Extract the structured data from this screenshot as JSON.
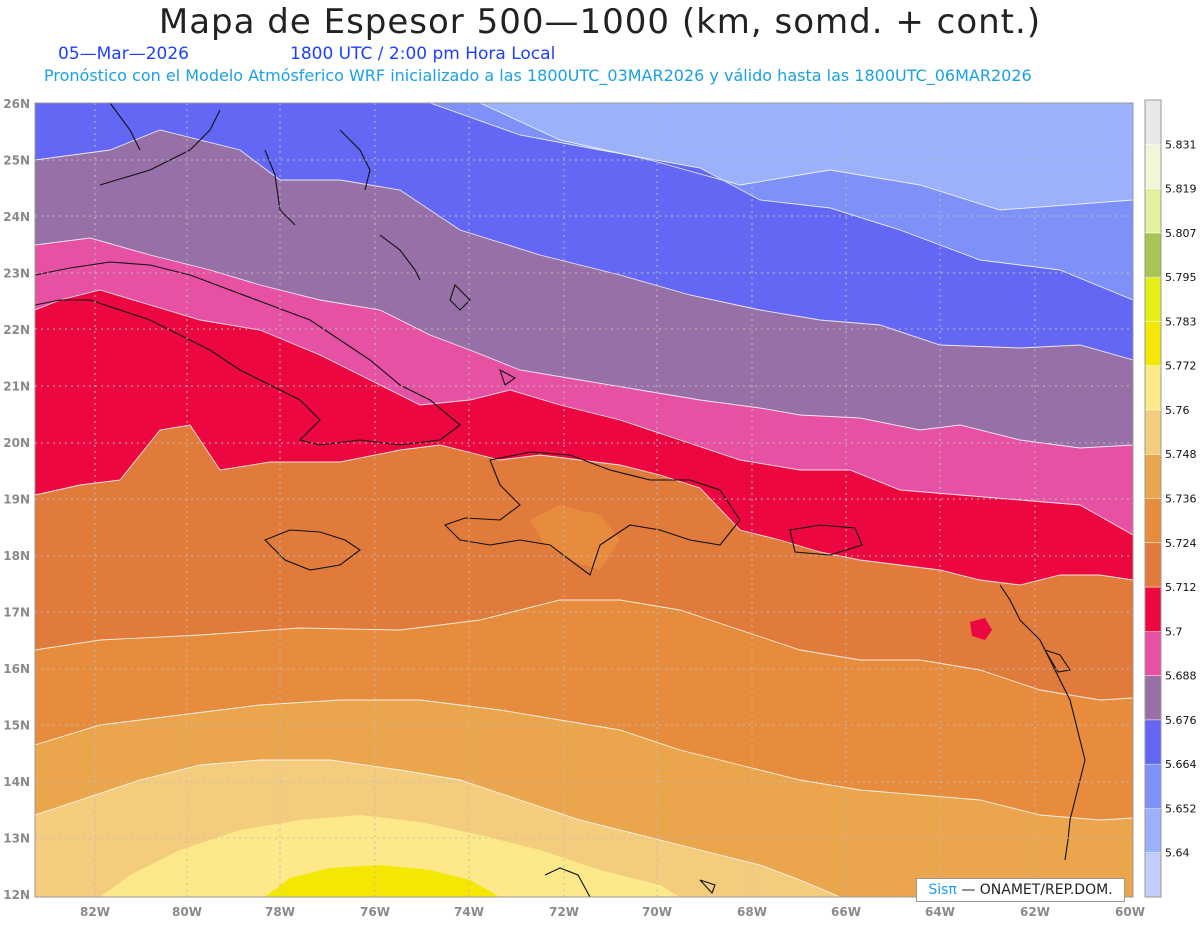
{
  "header": {
    "title": "Mapa de Espesor 500—1000 (km, somd. + cont.)",
    "date": "05—Mar—2026",
    "time": "1800 UTC / 2:00 pm Hora Local",
    "subtitle": "Pronóstico con el Modelo Atmósferico WRF inicializado a las 1800UTC_03MAR2026 y válido hasta las  1800UTC_06MAR2026"
  },
  "axes": {
    "lon_labels": [
      "82W",
      "80W",
      "78W",
      "76W",
      "74W",
      "72W",
      "70W",
      "68W",
      "66W",
      "64W",
      "62W",
      "60W"
    ],
    "lat_labels": [
      "12N",
      "13N",
      "14N",
      "15N",
      "16N",
      "17N",
      "18N",
      "19N",
      "20N",
      "21N",
      "22N",
      "23N",
      "24N",
      "25N",
      "26N"
    ]
  },
  "colorbar": {
    "labels": [
      "5.64",
      "5.652",
      "5.664",
      "5.676",
      "5.688",
      "5.7",
      "5.712",
      "5.724",
      "5.736",
      "5.748",
      "5.76",
      "5.772",
      "5.783",
      "5.795",
      "5.807",
      "5.819",
      "5.831"
    ],
    "colors": [
      "#c3cdfc",
      "#9bb1fb",
      "#7d91f8",
      "#6466f4",
      "#9770a8",
      "#e651a3",
      "#ec0740",
      "#e07b3b",
      "#e68c3c",
      "#eba64d",
      "#f3cc7d",
      "#fde98a",
      "#f5e704",
      "#e5ef16",
      "#a8c454",
      "#e3f0a0",
      "#f2f6d8",
      "#e8e8e8"
    ]
  },
  "credit": {
    "brand": "Sisπ",
    "text": "— ONAMET/REP.DOM."
  }
}
